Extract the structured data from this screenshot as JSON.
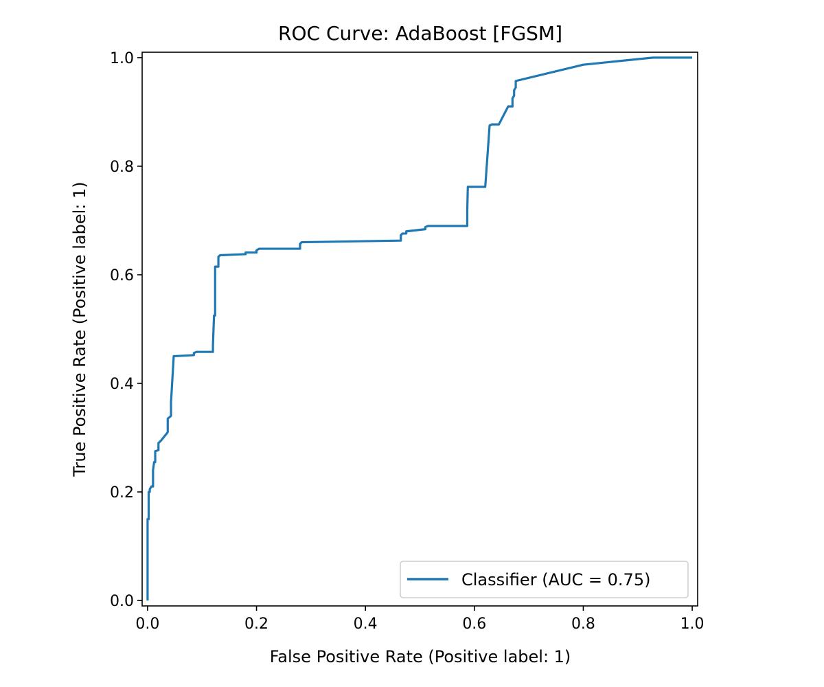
{
  "chart_data": {
    "type": "line",
    "title": "ROC Curve: AdaBoost [FGSM]",
    "xlabel": "False Positive Rate (Positive label: 1)",
    "ylabel": "True Positive Rate (Positive label: 1)",
    "xlim": [
      -0.01,
      1.01
    ],
    "ylim": [
      -0.01,
      1.01
    ],
    "xticks": [
      0.0,
      0.2,
      0.4,
      0.6,
      0.8,
      1.0
    ],
    "xtick_labels": [
      "0.0",
      "0.2",
      "0.4",
      "0.6",
      "0.8",
      "1.0"
    ],
    "yticks": [
      0.0,
      0.2,
      0.4,
      0.6,
      0.8,
      1.0
    ],
    "ytick_labels": [
      "0.0",
      "0.2",
      "0.4",
      "0.6",
      "0.8",
      "1.0"
    ],
    "grid": false,
    "legend": {
      "position": "lower-right"
    },
    "series": [
      {
        "name": "Classifier (AUC = 0.75)",
        "color": "#1f77b4",
        "points": [
          [
            0.0,
            0.0
          ],
          [
            0.0,
            0.15
          ],
          [
            0.002,
            0.15
          ],
          [
            0.002,
            0.2
          ],
          [
            0.004,
            0.2
          ],
          [
            0.004,
            0.205
          ],
          [
            0.007,
            0.21
          ],
          [
            0.01,
            0.21
          ],
          [
            0.01,
            0.24
          ],
          [
            0.012,
            0.255
          ],
          [
            0.014,
            0.255
          ],
          [
            0.014,
            0.275
          ],
          [
            0.02,
            0.277
          ],
          [
            0.02,
            0.29
          ],
          [
            0.025,
            0.295
          ],
          [
            0.037,
            0.31
          ],
          [
            0.037,
            0.335
          ],
          [
            0.043,
            0.34
          ],
          [
            0.043,
            0.365
          ],
          [
            0.048,
            0.45
          ],
          [
            0.085,
            0.452
          ],
          [
            0.085,
            0.456
          ],
          [
            0.09,
            0.458
          ],
          [
            0.12,
            0.458
          ],
          [
            0.12,
            0.47
          ],
          [
            0.122,
            0.525
          ],
          [
            0.124,
            0.525
          ],
          [
            0.124,
            0.615
          ],
          [
            0.13,
            0.615
          ],
          [
            0.13,
            0.633
          ],
          [
            0.133,
            0.636
          ],
          [
            0.18,
            0.638
          ],
          [
            0.18,
            0.641
          ],
          [
            0.2,
            0.641
          ],
          [
            0.2,
            0.645
          ],
          [
            0.205,
            0.648
          ],
          [
            0.28,
            0.648
          ],
          [
            0.28,
            0.657
          ],
          [
            0.283,
            0.66
          ],
          [
            0.465,
            0.663
          ],
          [
            0.465,
            0.673
          ],
          [
            0.468,
            0.676
          ],
          [
            0.475,
            0.676
          ],
          [
            0.475,
            0.68
          ],
          [
            0.51,
            0.684
          ],
          [
            0.51,
            0.688
          ],
          [
            0.515,
            0.69
          ],
          [
            0.587,
            0.69
          ],
          [
            0.587,
            0.72
          ],
          [
            0.588,
            0.762
          ],
          [
            0.62,
            0.762
          ],
          [
            0.628,
            0.875
          ],
          [
            0.632,
            0.877
          ],
          [
            0.645,
            0.877
          ],
          [
            0.662,
            0.91
          ],
          [
            0.67,
            0.91
          ],
          [
            0.67,
            0.925
          ],
          [
            0.673,
            0.93
          ],
          [
            0.673,
            0.94
          ],
          [
            0.676,
            0.945
          ],
          [
            0.676,
            0.957
          ],
          [
            0.8,
            0.987
          ],
          [
            0.928,
            1.0
          ],
          [
            0.928,
            1.0
          ],
          [
            1.0,
            1.0
          ]
        ]
      }
    ]
  }
}
